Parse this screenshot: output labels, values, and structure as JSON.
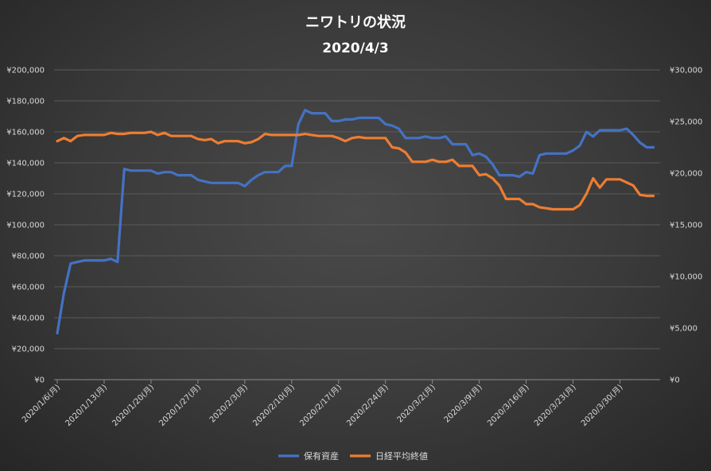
{
  "chart_data": {
    "type": "line",
    "title": "ニワトリの状況",
    "subtitle": "2020/4/3",
    "colors": {
      "保有資産": "#4472c4",
      "日経平均終値": "#ed7d31"
    },
    "y_left": {
      "ylim": [
        0,
        200000
      ],
      "ticks": [
        "¥0",
        "¥20,000",
        "¥40,000",
        "¥60,000",
        "¥80,000",
        "¥100,000",
        "¥120,000",
        "¥140,000",
        "¥160,000",
        "¥180,000",
        "¥200,000"
      ]
    },
    "y_right": {
      "ylim": [
        0,
        30000
      ],
      "ticks": [
        "¥0",
        "¥5,000",
        "¥10,000",
        "¥15,000",
        "¥20,000",
        "¥25,000",
        "¥30,000"
      ]
    },
    "x_ticks": [
      "2020/1/6(月)",
      "2020/1/13(月)",
      "2020/1/20(月)",
      "2020/1/27(月)",
      "2020/2/3(月)",
      "2020/2/10(月)",
      "2020/2/17(月)",
      "2020/2/24(月)",
      "2020/3/2(月)",
      "2020/3/9(月)",
      "2020/3/16(月)",
      "2020/3/23(月)",
      "2020/3/30(月)"
    ],
    "x_range_days": [
      0,
      90
    ],
    "legend_position": "bottom",
    "grid": true,
    "series": [
      {
        "name": "保有資産",
        "axis": "left",
        "x": [
          0,
          1,
          2,
          3,
          4,
          5,
          6,
          7,
          8,
          9,
          10,
          11,
          12,
          13,
          14,
          15,
          16,
          17,
          18,
          19,
          20,
          21,
          22,
          23,
          24,
          25,
          26,
          27,
          28,
          29,
          30,
          31,
          32,
          33,
          34,
          35,
          36,
          37,
          38,
          39,
          40,
          41,
          42,
          43,
          44,
          45,
          46,
          47,
          48,
          49,
          50,
          51,
          52,
          53,
          54,
          55,
          56,
          57,
          58,
          59,
          60,
          61,
          62,
          63,
          64,
          65,
          66,
          67,
          68,
          69,
          70,
          71,
          72,
          73,
          74,
          75,
          76,
          77,
          78,
          79,
          80,
          81,
          82,
          83,
          84,
          85,
          86,
          87,
          88,
          89
        ],
        "values": [
          30000,
          56000,
          75000,
          76000,
          77000,
          77000,
          77000,
          77000,
          78000,
          76000,
          136000,
          135000,
          135000,
          135000,
          135000,
          133000,
          134000,
          134000,
          132000,
          132000,
          132000,
          129000,
          128000,
          127000,
          127000,
          127000,
          127000,
          127000,
          125000,
          129000,
          132000,
          134000,
          134000,
          134000,
          138000,
          138000,
          165000,
          174000,
          172000,
          172000,
          172000,
          167000,
          167000,
          168000,
          168000,
          169000,
          169000,
          169000,
          169000,
          165000,
          164000,
          162000,
          156000,
          156000,
          156000,
          157000,
          156000,
          156000,
          157000,
          152000,
          152000,
          152000,
          145000,
          146000,
          144000,
          139000,
          132000,
          132000,
          132000,
          131000,
          134000,
          133000,
          145000,
          146000,
          146000,
          146000,
          146000,
          148000,
          151000,
          160000,
          157000,
          161000,
          161000,
          161000,
          161000,
          162000,
          158000,
          153000,
          150000,
          150000
        ]
      },
      {
        "name": "日経平均終値",
        "axis": "right",
        "x": [
          0,
          1,
          2,
          3,
          4,
          5,
          6,
          7,
          8,
          9,
          10,
          11,
          12,
          13,
          14,
          15,
          16,
          17,
          18,
          19,
          20,
          21,
          22,
          23,
          24,
          25,
          26,
          27,
          28,
          29,
          30,
          31,
          32,
          33,
          34,
          35,
          36,
          37,
          38,
          39,
          40,
          41,
          42,
          43,
          44,
          45,
          46,
          47,
          48,
          49,
          50,
          51,
          52,
          53,
          54,
          55,
          56,
          57,
          58,
          59,
          60,
          61,
          62,
          63,
          64,
          65,
          66,
          67,
          68,
          69,
          70,
          71,
          72,
          73,
          74,
          75,
          76,
          77,
          78,
          79,
          80,
          81,
          82,
          83,
          84,
          85,
          86,
          87,
          88,
          89
        ],
        "values": [
          23100,
          23400,
          23100,
          23600,
          23700,
          23700,
          23700,
          23700,
          23900,
          23800,
          23800,
          23900,
          23900,
          23900,
          24000,
          23700,
          23900,
          23600,
          23600,
          23600,
          23600,
          23300,
          23200,
          23300,
          22900,
          23100,
          23100,
          23100,
          22900,
          23000,
          23300,
          23800,
          23700,
          23700,
          23700,
          23700,
          23700,
          23800,
          23700,
          23600,
          23600,
          23600,
          23400,
          23100,
          23400,
          23500,
          23400,
          23400,
          23400,
          23400,
          22500,
          22400,
          22000,
          21100,
          21100,
          21100,
          21300,
          21100,
          21100,
          21300,
          20700,
          20700,
          20700,
          19800,
          19900,
          19500,
          18800,
          17500,
          17500,
          17500,
          17000,
          17000,
          16700,
          16600,
          16500,
          16500,
          16500,
          16500,
          16900,
          18000,
          19500,
          18600,
          19400,
          19400,
          19400,
          19100,
          18800,
          17900,
          17800,
          17800
        ]
      }
    ]
  }
}
